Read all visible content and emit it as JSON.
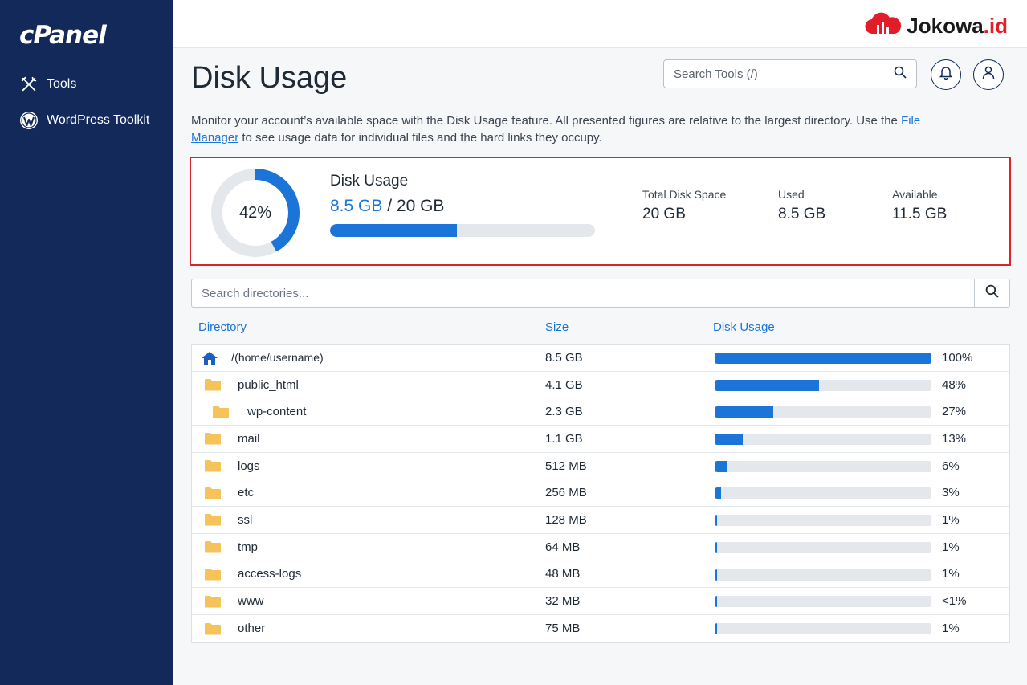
{
  "sidebar": {
    "logo": "cPanel",
    "items": [
      {
        "label": "Tools",
        "icon": "tools-icon"
      },
      {
        "label": "WordPress Toolkit",
        "icon": "wordpress-icon"
      }
    ]
  },
  "topbar": {
    "brand_name": "Jokowa",
    "brand_suffix": ".id"
  },
  "header": {
    "title": "Disk Usage",
    "search_placeholder": "Search Tools (/)"
  },
  "description": {
    "text_before": "Monitor your account’s  available space with the Disk Usage feature. All presented figures are relative to the largest directory. Use the ",
    "link_part1": "File",
    "link_part2": "Manager",
    "text_after": " to see usage data for individual files and the hard links they occupy."
  },
  "summary": {
    "percent_label": "42%",
    "percent_value": 42,
    "title": "Disk Usage",
    "used_amount": "8.5 GB",
    "separator": " / ",
    "total_amount": "20 GB",
    "stats": [
      {
        "label": "Total Disk Space",
        "value": "20 GB"
      },
      {
        "label": "Used",
        "value": "8.5 GB"
      },
      {
        "label": "Available",
        "value": "11.5 GB"
      }
    ]
  },
  "directory_search": {
    "placeholder": "Search directories..."
  },
  "table": {
    "headers": {
      "directory": "Directory",
      "size": "Size",
      "usage": "Disk Usage"
    },
    "rows": [
      {
        "name": "/",
        "name_suffix": " (home/username)",
        "size": "8.5 GB",
        "percent": 100,
        "percent_label": "100%",
        "icon": "home-icon",
        "indent": 0
      },
      {
        "name": "public_html",
        "size": "4.1 GB",
        "percent": 48,
        "percent_label": "48%",
        "icon": "folder-icon",
        "indent": 0
      },
      {
        "name": "wp-content",
        "size": "2.3 GB",
        "percent": 27,
        "percent_label": "27%",
        "icon": "folder-icon",
        "indent": 1
      },
      {
        "name": "mail",
        "size": "1.1 GB",
        "percent": 13,
        "percent_label": "13%",
        "icon": "folder-icon",
        "indent": 0
      },
      {
        "name": "logs",
        "size": "512 MB",
        "percent": 6,
        "percent_label": "6%",
        "icon": "folder-icon",
        "indent": 0
      },
      {
        "name": "etc",
        "size": "256 MB",
        "percent": 3,
        "percent_label": "3%",
        "icon": "folder-icon",
        "indent": 0
      },
      {
        "name": "ssl",
        "size": "128 MB",
        "percent": 1,
        "percent_label": "1%",
        "icon": "folder-icon",
        "indent": 0
      },
      {
        "name": "tmp",
        "size": "64 MB",
        "percent": 1,
        "percent_label": "1%",
        "icon": "folder-icon",
        "indent": 0
      },
      {
        "name": "access-logs",
        "size": "48 MB",
        "percent": 1,
        "percent_label": "1%",
        "icon": "folder-icon",
        "indent": 0
      },
      {
        "name": "www",
        "size": "32 MB",
        "percent": 0.5,
        "percent_label": "<1%",
        "icon": "folder-icon",
        "indent": 0
      },
      {
        "name": "other",
        "size": "75 MB",
        "percent": 1,
        "percent_label": "1%",
        "icon": "folder-icon",
        "indent": 0
      }
    ]
  },
  "colors": {
    "sidebar": "#12295a",
    "accent": "#1b74d8",
    "highlight_border": "#d9232d",
    "folder": "#f6c35b",
    "brand_red": "#e11d2a"
  }
}
